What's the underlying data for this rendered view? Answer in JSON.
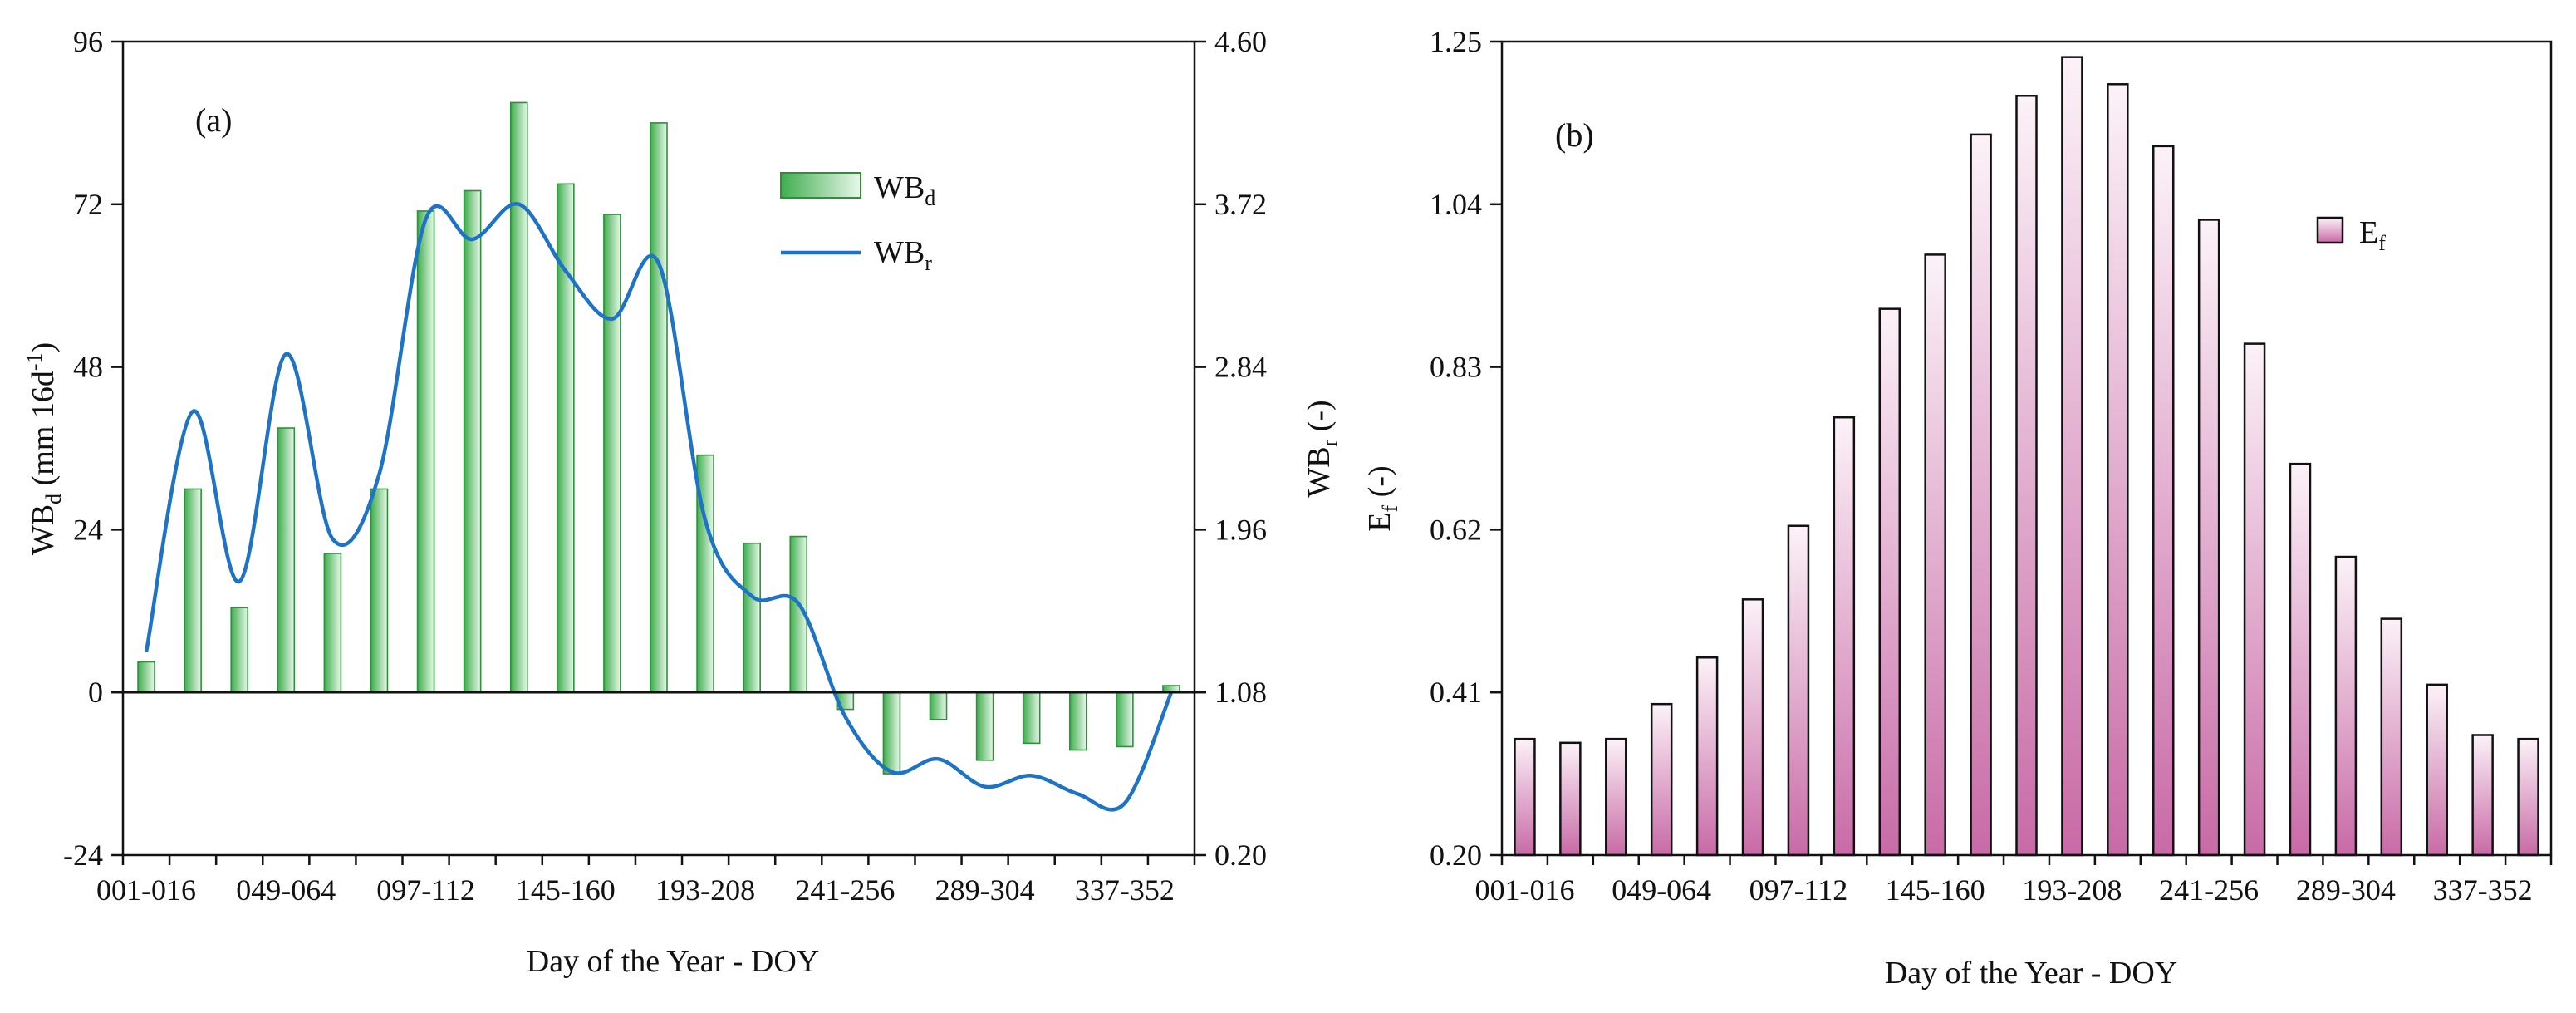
{
  "colors": {
    "bar_a_dark": "#3fae4f",
    "bar_a_light": "#e9f7ea",
    "bar_a_stroke": "#2f8f3a",
    "line_wbr": "#1f73c4",
    "bar_b_dark": "#c86aa6",
    "bar_b_light": "#fcf2f8",
    "bar_b_stroke": "#111111"
  },
  "chart_data": [
    {
      "type": "bar",
      "panel_label": "(a)",
      "xlabel": "Day of the Year - DOY",
      "x_tick_labels": [
        "001-016",
        "049-064",
        "097-112",
        "145-160",
        "193-208",
        "241-256",
        "289-304",
        "337-352"
      ],
      "categories": [
        "001-016",
        "017-032",
        "033-048",
        "049-064",
        "065-080",
        "081-096",
        "097-112",
        "113-128",
        "129-144",
        "145-160",
        "161-176",
        "177-192",
        "193-208",
        "209-224",
        "225-240",
        "241-256",
        "257-272",
        "273-288",
        "289-304",
        "305-320",
        "321-336",
        "337-352",
        "353-365"
      ],
      "y_left": {
        "label_main": "WB",
        "label_sub": "d",
        "label_unit": " (mm 16d",
        "label_sup": "-1",
        "label_close": ")",
        "ylim": [
          -24,
          96
        ],
        "ticks": [
          "-24",
          "0",
          "24",
          "48",
          "72",
          "96"
        ]
      },
      "y_right": {
        "label_main": "WB",
        "label_sub": "r",
        "label_unit": " (-)",
        "ylim": [
          0.2,
          4.6
        ],
        "ticks": [
          "0.20",
          "1.08",
          "1.96",
          "2.84",
          "3.72",
          "4.60"
        ]
      },
      "legend": {
        "bar": {
          "main": "WB",
          "sub": "d"
        },
        "line": {
          "main": "WB",
          "sub": "r"
        }
      },
      "series": [
        {
          "kind": "bar",
          "axis": "left",
          "values": [
            4.5,
            30,
            12.5,
            39,
            20.5,
            30,
            71,
            74,
            87,
            75,
            70.5,
            84,
            35,
            22,
            23,
            -2.5,
            -12,
            -4,
            -10,
            -7.5,
            -8.5,
            -8,
            1
          ]
        },
        {
          "kind": "line",
          "axis": "right",
          "values": [
            1.3,
            2.6,
            1.68,
            2.91,
            1.91,
            2.26,
            3.64,
            3.53,
            3.72,
            3.36,
            3.1,
            3.4,
            2.01,
            1.6,
            1.56,
            0.95,
            0.65,
            0.72,
            0.57,
            0.63,
            0.53,
            0.48,
            1.08
          ]
        }
      ]
    },
    {
      "type": "bar",
      "panel_label": "(b)",
      "xlabel": "Day of the Year - DOY",
      "x_tick_labels": [
        "001-016",
        "049-064",
        "097-112",
        "145-160",
        "193-208",
        "241-256",
        "289-304",
        "337-352"
      ],
      "categories": [
        "001-016",
        "017-032",
        "033-048",
        "049-064",
        "065-080",
        "081-096",
        "097-112",
        "113-128",
        "129-144",
        "145-160",
        "161-176",
        "177-192",
        "193-208",
        "209-224",
        "225-240",
        "241-256",
        "257-272",
        "273-288",
        "289-304",
        "305-320",
        "321-336",
        "337-352",
        "353-365"
      ],
      "y_left": {
        "label_main": "E",
        "label_sub": "f",
        "label_unit": " (-)",
        "ylim": [
          0.2,
          1.25
        ],
        "ticks": [
          "0.20",
          "0.41",
          "0.62",
          "0.83",
          "1.04",
          "1.25"
        ]
      },
      "legend": {
        "bar": {
          "main": "E",
          "sub": "f"
        }
      },
      "series": [
        {
          "kind": "bar",
          "axis": "left",
          "values": [
            0.35,
            0.345,
            0.35,
            0.395,
            0.455,
            0.53,
            0.625,
            0.765,
            0.905,
            0.975,
            1.13,
            1.18,
            1.23,
            1.195,
            1.115,
            1.02,
            0.86,
            0.705,
            0.585,
            0.505,
            0.42,
            0.355,
            0.35
          ]
        }
      ]
    }
  ]
}
